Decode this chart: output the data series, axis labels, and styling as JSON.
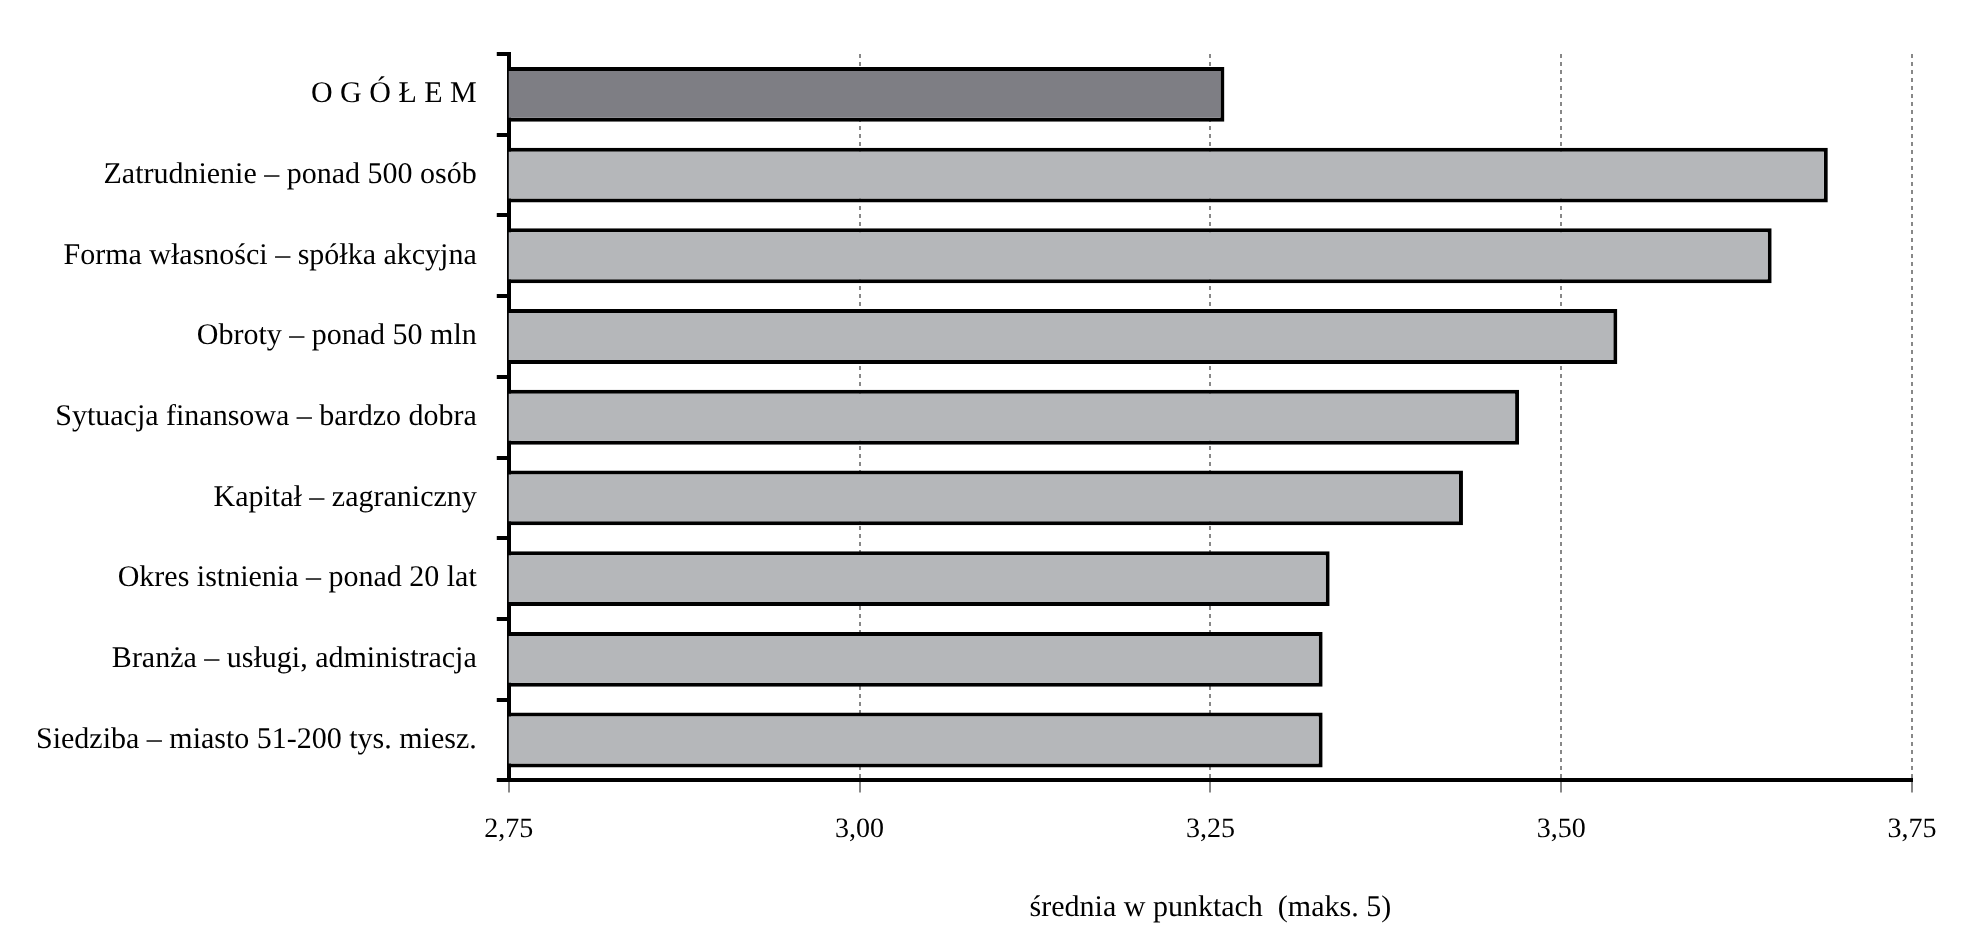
{
  "chart_data": {
    "type": "bar",
    "orientation": "horizontal",
    "xlabel": "średnia w punktach  (maks. 5)",
    "categories": [
      "O G Ó Ł E M",
      "Zatrudnienie – ponad 500 osób",
      "Forma własności – spółka akcyjna",
      "Obroty – ponad 50 mln",
      "Sytuacja finansowa – bardzo dobra",
      "Kapitał – zagraniczny",
      "Okres istnienia – ponad 20 lat",
      "Branża – usługi, administracja",
      "Siedziba – miasto 51-200 tys. miesz."
    ],
    "values": [
      3.26,
      3.69,
      3.65,
      3.54,
      3.47,
      3.43,
      3.335,
      3.33,
      3.33
    ],
    "colors": [
      "#7e7e84",
      "#b5b7ba",
      "#b5b7ba",
      "#b5b7ba",
      "#b5b7ba",
      "#b5b7ba",
      "#b5b7ba",
      "#b5b7ba",
      "#b5b7ba"
    ],
    "xlim": [
      2.75,
      3.75
    ],
    "xticks": [
      {
        "value": 2.75,
        "label": "2,75"
      },
      {
        "value": 3,
        "label": "3,00"
      },
      {
        "value": 3.25,
        "label": "3,25"
      },
      {
        "value": 3.5,
        "label": "3,50"
      },
      {
        "value": 3.75,
        "label": "3,75"
      }
    ],
    "grid": "x",
    "legend": false
  }
}
